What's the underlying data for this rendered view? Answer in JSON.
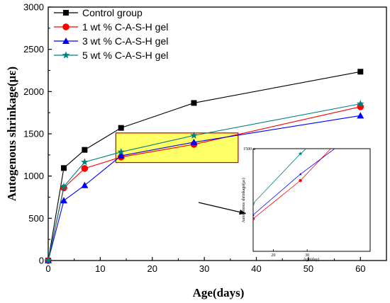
{
  "chart_data": {
    "type": "line",
    "xlabel": "Age(days)",
    "ylabel": "Autogenous shrinkage(με)",
    "xlim": [
      0,
      65
    ],
    "ylim": [
      0,
      3000
    ],
    "x_ticks": [
      0,
      10,
      20,
      30,
      40,
      50,
      60
    ],
    "y_ticks": [
      0,
      500,
      1000,
      1500,
      2000,
      2500,
      3000
    ],
    "grid": false,
    "legend_position": "top-left",
    "series": [
      {
        "name": "Control group",
        "color": "#000000",
        "marker": "square",
        "x": [
          0,
          3,
          7,
          14,
          28,
          60
        ],
        "y": [
          0,
          1095,
          1310,
          1570,
          1865,
          2235
        ]
      },
      {
        "name": "1 wt % C-A-S-H gel",
        "color": "#ff0000",
        "marker": "circle",
        "x": [
          0,
          3,
          7,
          14,
          28,
          60
        ],
        "y": [
          0,
          860,
          1090,
          1225,
          1375,
          1820
        ]
      },
      {
        "name": "3 wt % C-A-S-H gel",
        "color": "#0000ff",
        "marker": "triangle",
        "x": [
          0,
          3,
          7,
          14,
          28,
          60
        ],
        "y": [
          0,
          710,
          890,
          1240,
          1400,
          1715
        ]
      },
      {
        "name": "5 wt % C-A-S-H gel",
        "color": "#008080",
        "marker": "star",
        "x": [
          0,
          3,
          7,
          14,
          28,
          60
        ],
        "y": [
          0,
          875,
          1165,
          1285,
          1480,
          1855
        ]
      }
    ],
    "highlight": {
      "fill": "#ffff66",
      "x_range": [
        13,
        36.5
      ],
      "y_range": [
        1160,
        1510
      ]
    },
    "inset": {
      "xlabel": "Age(day)",
      "ylabel": "Autogenous shrinkage(με)",
      "x_ticks": [
        "20",
        "30"
      ],
      "y_ticks": [
        "1500"
      ]
    }
  }
}
